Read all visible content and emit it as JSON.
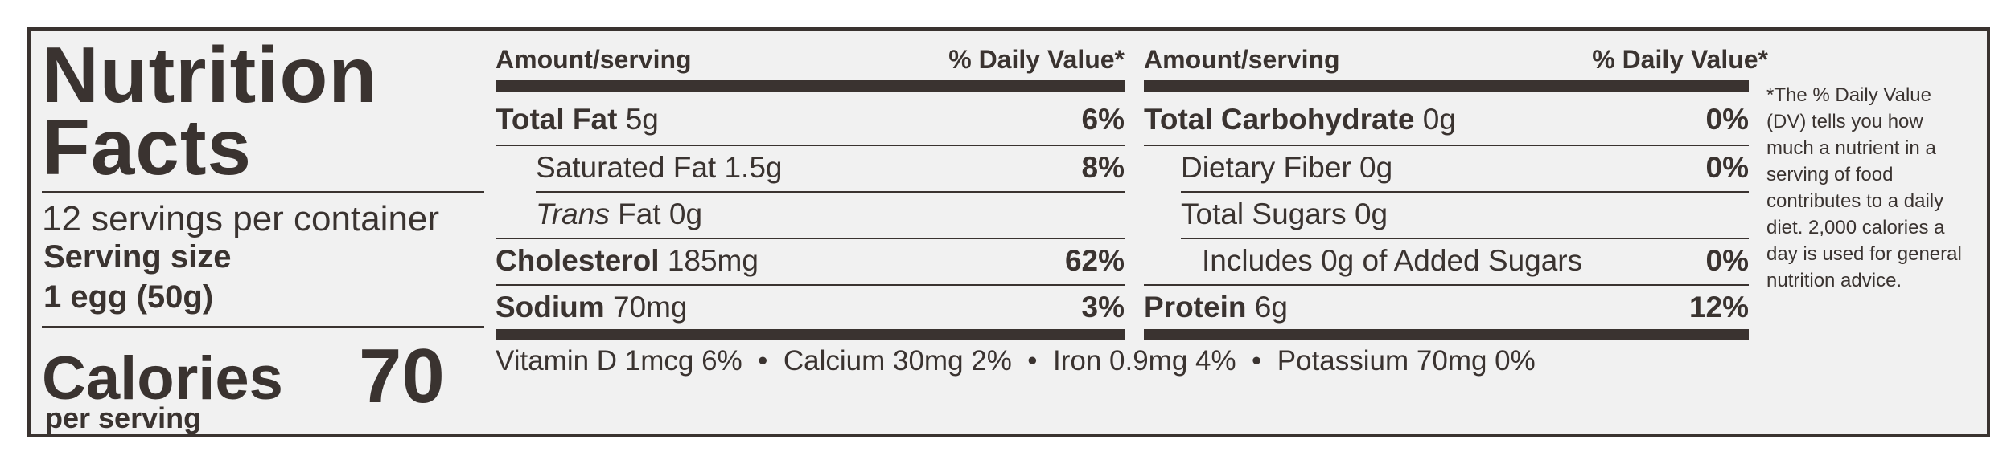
{
  "title_line1": "Nutrition",
  "title_line2": "Facts",
  "servings_per_container": "12 servings per container",
  "serving_size_label": "Serving size",
  "serving_size_value": "1 egg (50g)",
  "calories_label": "Calories",
  "calories_value": "70",
  "per_serving": "per serving",
  "left_table": {
    "header_amount": "Amount/serving",
    "header_dv": "% Daily Value*",
    "rows": [
      {
        "name": "Total Fat",
        "amount": " 5g",
        "dv": "6%"
      },
      {
        "name": "Saturated Fat",
        "amount": " 1.5g",
        "dv": "8%"
      },
      {
        "name": "Trans",
        "amount": " Fat 0g",
        "dv": ""
      },
      {
        "name": "Cholesterol",
        "amount": " 185mg",
        "dv": "62%"
      },
      {
        "name": "Sodium",
        "amount": " 70mg",
        "dv": "3%"
      }
    ]
  },
  "right_table": {
    "header_amount": "Amount/serving",
    "header_dv": "% Daily Value*",
    "rows": [
      {
        "name": "Total Carbohydrate",
        "amount": " 0g",
        "dv": "0%"
      },
      {
        "name": "Dietary Fiber",
        "amount": " 0g",
        "dv": "0%"
      },
      {
        "name": "Total Sugars",
        "amount": " 0g",
        "dv": ""
      },
      {
        "name": "Includes 0g of Added Sugars",
        "amount": "",
        "dv": "0%"
      },
      {
        "name": "Protein",
        "amount": " 6g",
        "dv": "12%"
      }
    ]
  },
  "vitamins": "Vitamin D 1mcg 6%  •  Calcium 30mg 2%  •  Iron 0.9mg 4%  •  Potassium 70mg 0%",
  "footnote": "*The % Daily Value (DV) tells you how much a nutrient in a serving of food contributes to a daily diet. 2,000 calories a day is used for general nutrition advice."
}
